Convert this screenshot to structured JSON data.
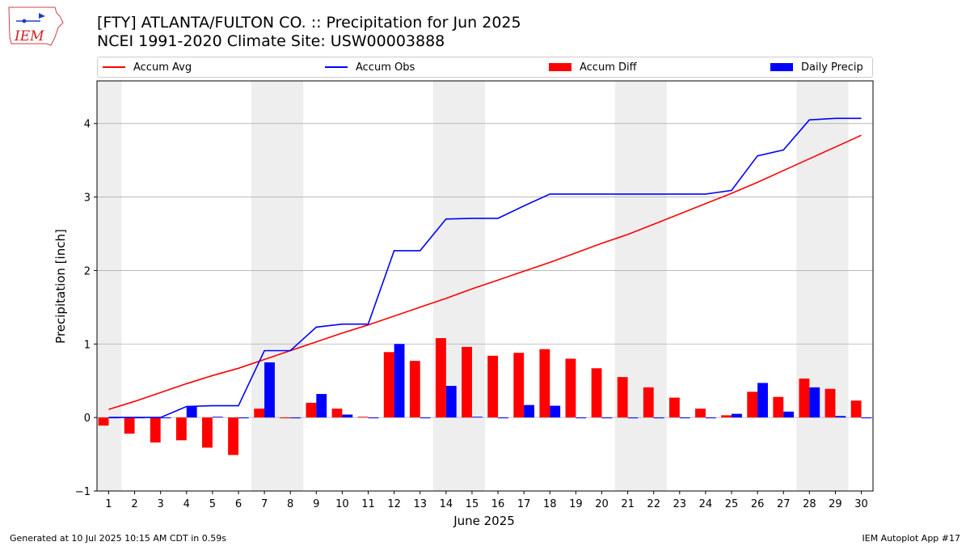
{
  "header": {
    "title_line1": "[FTY] ATLANTA/FULTON CO. :: Precipitation for Jun 2025",
    "title_line2": "NCEI 1991-2020 Climate Site: USW00003888",
    "logo_text": "IEM"
  },
  "footer": {
    "generated": "Generated at 10 Jul 2025 10:15 AM CDT in 0.59s",
    "app": "IEM Autoplot App #17"
  },
  "colors": {
    "avg": "#ff0000",
    "obs": "#0000ff",
    "diff": "#ff0000",
    "daily": "#0000ff",
    "weekend_shade": "#eeeeee",
    "grid": "#b0b0b0"
  },
  "chart_data": {
    "type": "bar",
    "title": "[FTY] ATLANTA/FULTON CO. :: Precipitation for Jun 2025",
    "subtitle": "NCEI 1991-2020 Climate Site: USW00003888",
    "xlabel": "June 2025",
    "ylabel": "Precipitation [inch]",
    "ylim": [
      -1,
      4.58
    ],
    "yticks": [
      -1,
      0,
      1,
      2,
      3,
      4
    ],
    "ytick_labels": [
      "−1",
      "0",
      "1",
      "2",
      "3",
      "4"
    ],
    "grid": "horizontal",
    "legend_position": "top",
    "categories": [
      "1",
      "2",
      "3",
      "4",
      "5",
      "6",
      "7",
      "8",
      "9",
      "10",
      "11",
      "12",
      "13",
      "14",
      "15",
      "16",
      "17",
      "18",
      "19",
      "20",
      "21",
      "22",
      "23",
      "24",
      "25",
      "26",
      "27",
      "28",
      "29",
      "30"
    ],
    "shaded_days": [
      [
        0.5,
        1.5
      ],
      [
        6.5,
        8.5
      ],
      [
        13.5,
        15.5
      ],
      [
        20.5,
        22.5
      ],
      [
        27.5,
        29.5
      ]
    ],
    "series": [
      {
        "name": "Accum Avg",
        "kind": "line",
        "values": [
          0.11,
          0.22,
          0.34,
          0.46,
          0.57,
          0.67,
          0.79,
          0.91,
          1.03,
          1.15,
          1.26,
          1.38,
          1.5,
          1.62,
          1.75,
          1.87,
          1.99,
          2.11,
          2.24,
          2.37,
          2.49,
          2.63,
          2.77,
          2.91,
          3.05,
          3.2,
          3.36,
          3.52,
          3.68,
          3.84
        ]
      },
      {
        "name": "Accum Obs",
        "kind": "line",
        "values": [
          0.0,
          0.0,
          0.0,
          0.15,
          0.16,
          0.16,
          0.91,
          0.91,
          1.23,
          1.27,
          1.27,
          2.27,
          2.27,
          2.7,
          2.71,
          2.71,
          2.88,
          3.04,
          3.04,
          3.04,
          3.04,
          3.04,
          3.04,
          3.04,
          3.09,
          3.56,
          3.64,
          4.05,
          4.07,
          4.07
        ]
      },
      {
        "name": "Accum Diff",
        "kind": "bar",
        "values": [
          -0.11,
          -0.22,
          -0.34,
          -0.31,
          -0.41,
          -0.51,
          0.12,
          0.0,
          0.2,
          0.12,
          0.01,
          0.89,
          0.77,
          1.08,
          0.96,
          0.84,
          0.88,
          0.93,
          0.8,
          0.67,
          0.55,
          0.41,
          0.27,
          0.12,
          0.03,
          0.35,
          0.28,
          0.53,
          0.39,
          0.23
        ]
      },
      {
        "name": "Daily Precip",
        "kind": "bar",
        "values": [
          0.0,
          0.0,
          0.0,
          0.15,
          0.01,
          0.0,
          0.75,
          0.0,
          0.32,
          0.04,
          0.0,
          1.0,
          0.0,
          0.43,
          0.01,
          0.0,
          0.17,
          0.16,
          0.0,
          0.0,
          0.0,
          0.0,
          0.0,
          0.0,
          0.05,
          0.47,
          0.08,
          0.41,
          0.02,
          0.0
        ]
      }
    ]
  }
}
